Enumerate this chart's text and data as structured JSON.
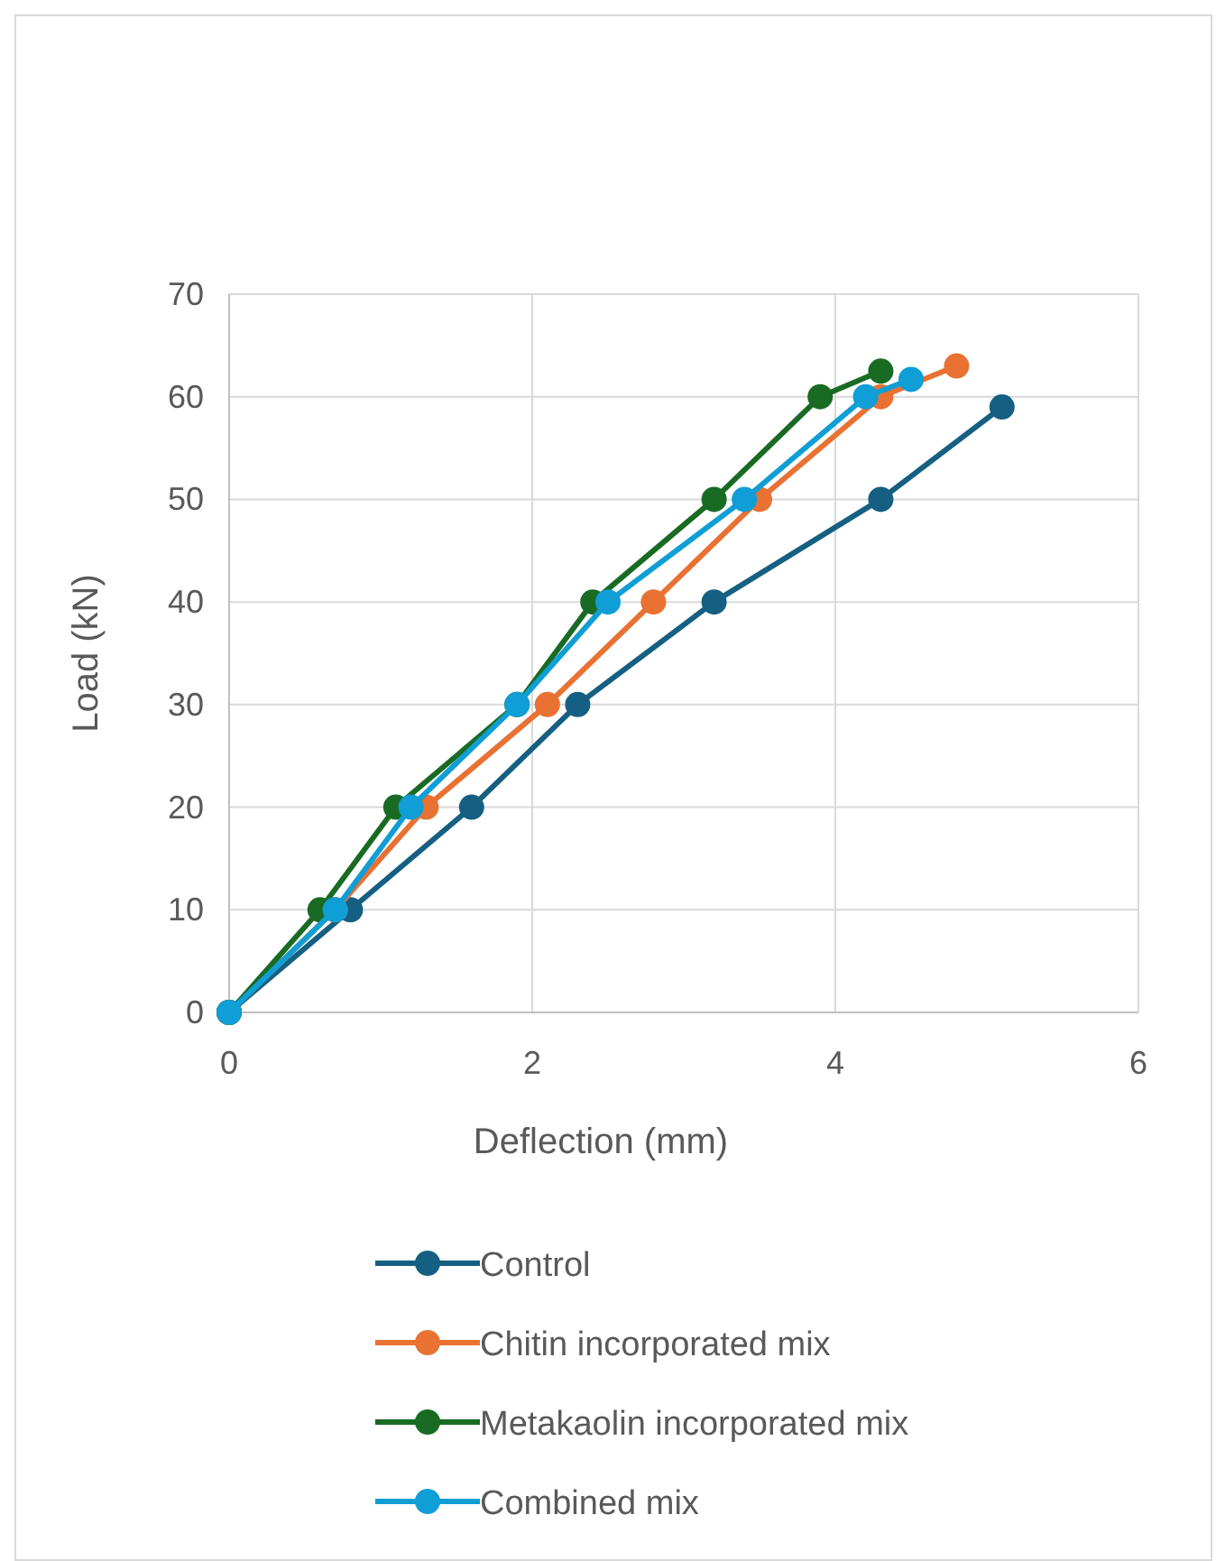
{
  "chart_data": {
    "type": "line",
    "xlabel": "Deflection (mm)",
    "ylabel": "Load (kN)",
    "xlim": [
      0,
      6
    ],
    "xticks": [
      0,
      2,
      4,
      6
    ],
    "ylim": [
      0,
      70
    ],
    "yticks": [
      0,
      10,
      20,
      30,
      40,
      50,
      60,
      70
    ],
    "grid": true,
    "legend": "bottom",
    "marker": "circle",
    "line_style": "solid",
    "series": [
      {
        "name": "Control",
        "color": "#156082",
        "x": [
          0,
          0.8,
          1.6,
          2.3,
          3.2,
          4.3,
          5.1
        ],
        "values": [
          0,
          10,
          20,
          30,
          40,
          50,
          59
        ]
      },
      {
        "name": "Chitin incorporated mix",
        "color": "#e97132",
        "x": [
          0,
          0.7,
          1.3,
          2.1,
          2.8,
          3.5,
          4.3,
          4.8
        ],
        "values": [
          0,
          10,
          20,
          30,
          40,
          50,
          60,
          63
        ]
      },
      {
        "name": "Metakaolin incorporated mix",
        "color": "#196b24",
        "x": [
          0,
          0.6,
          1.1,
          1.9,
          2.4,
          3.2,
          3.9,
          4.3
        ],
        "values": [
          0,
          10,
          20,
          30,
          40,
          50,
          60,
          62.5
        ]
      },
      {
        "name": "Combined mix",
        "color": "#0f9ed5",
        "x": [
          0,
          0.7,
          1.2,
          1.9,
          2.5,
          3.4,
          4.2,
          4.5
        ],
        "values": [
          0,
          10,
          20,
          30,
          40,
          50,
          60,
          61.7
        ]
      }
    ]
  }
}
